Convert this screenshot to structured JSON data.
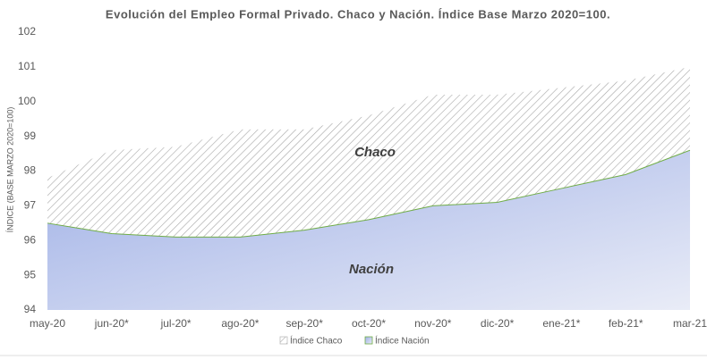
{
  "chart_data": {
    "type": "area",
    "title": "Evolución  del  Empleo  Formal  Privado.  Chaco  y  Nación.  Índice  Base  Marzo  2020=100.",
    "y_label": "ÍNDICE (BASE MARZO 2020=100)",
    "categories": [
      "may-20",
      "jun-20*",
      "jul-20*",
      "ago-20*",
      "sep-20*",
      "oct-20*",
      "nov-20*",
      "dic-20*",
      "ene-21*",
      "feb-21*",
      "mar-21"
    ],
    "series": [
      {
        "name": "Índice Chaco",
        "color": "#a6a6a6",
        "values": [
          97.8,
          98.6,
          98.7,
          99.2,
          99.2,
          99.6,
          100.2,
          100.2,
          100.4,
          100.6,
          101.0
        ]
      },
      {
        "name": "Índice Nación",
        "color": "#a9b8e8",
        "values": [
          96.5,
          96.2,
          96.1,
          96.1,
          96.3,
          96.6,
          97.0,
          97.1,
          97.5,
          97.9,
          98.6
        ]
      }
    ],
    "annotations": [
      "Chaco",
      "Nación"
    ],
    "ylim": [
      94,
      102
    ],
    "yticks": [
      94,
      95,
      96,
      97,
      98,
      99,
      100,
      101,
      102
    ],
    "grid": false,
    "legend": "bottom"
  }
}
